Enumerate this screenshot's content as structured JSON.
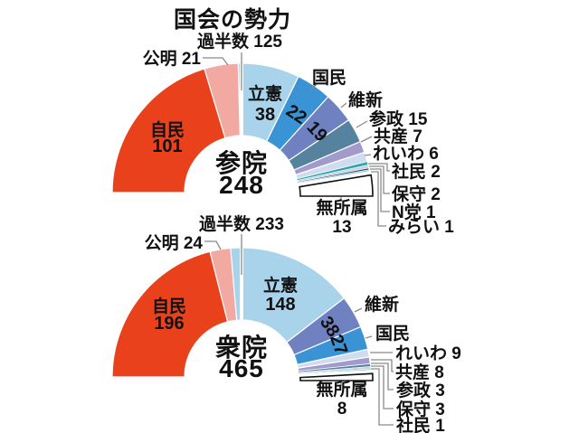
{
  "title": "国会の勢力",
  "text_color": "#111111",
  "leader_line_color": "#8a8a8a",
  "chart_data": [
    {
      "type": "pie",
      "variant": "half_donut",
      "chamber": "参院",
      "total": 248,
      "majority_label": "過半数",
      "majority_value": 125,
      "legend_position": "around",
      "series": [
        {
          "name": "自民",
          "value": 101,
          "color": "#e8411b"
        },
        {
          "name": "公明",
          "value": 21,
          "color": "#f2a9a2"
        },
        {
          "name": "立憲",
          "value": 38,
          "color": "#a9d3ea"
        },
        {
          "name": "国民",
          "value": 22,
          "color": "#3a93d5"
        },
        {
          "name": "維新",
          "value": 19,
          "color": "#6f81c1"
        },
        {
          "name": "参政",
          "value": 15,
          "color": "#54829f"
        },
        {
          "name": "共産",
          "value": 7,
          "color": "#a29aca"
        },
        {
          "name": "れいわ",
          "value": 6,
          "color": "#cfdcf0"
        },
        {
          "name": "社民",
          "value": 2,
          "color": "#2ea6a6"
        },
        {
          "name": "保守",
          "value": 2,
          "color": "#c9d6e4"
        },
        {
          "name": "N党",
          "value": 1,
          "color": "#2a3f7e"
        },
        {
          "name": "みらい",
          "value": 1,
          "color": "#8fd0cc"
        },
        {
          "name": "無所属",
          "value": 13,
          "color": "#ffffff"
        }
      ]
    },
    {
      "type": "pie",
      "variant": "half_donut",
      "chamber": "衆院",
      "total": 465,
      "majority_label": "過半数",
      "majority_value": 233,
      "legend_position": "around",
      "series": [
        {
          "name": "自民",
          "value": 196,
          "color": "#e8411b"
        },
        {
          "name": "公明",
          "value": 24,
          "color": "#f2a9a2"
        },
        {
          "name": "立憲",
          "value": 148,
          "color": "#a9d3ea"
        },
        {
          "name": "維新",
          "value": 38,
          "color": "#6f81c1"
        },
        {
          "name": "国民",
          "value": 27,
          "color": "#3a93d5"
        },
        {
          "name": "れいわ",
          "value": 9,
          "color": "#cfdcf0"
        },
        {
          "name": "共産",
          "value": 8,
          "color": "#a29aca"
        },
        {
          "name": "参政",
          "value": 3,
          "color": "#54829f"
        },
        {
          "name": "保守",
          "value": 3,
          "color": "#c9d6e4"
        },
        {
          "name": "社民",
          "value": 1,
          "color": "#2ea6a6"
        },
        {
          "name": "無所属",
          "value": 8,
          "color": "#ffffff"
        }
      ]
    }
  ]
}
